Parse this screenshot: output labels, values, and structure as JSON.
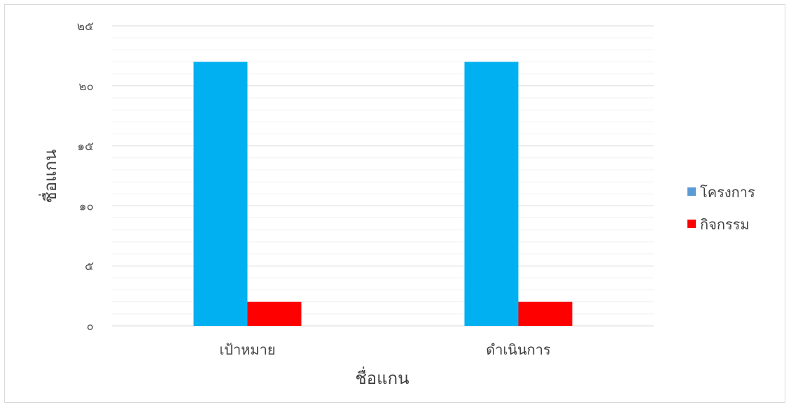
{
  "chart_data": {
    "type": "bar",
    "categories": [
      "เป้าหมาย",
      "ดำเนินการ"
    ],
    "series": [
      {
        "name": "โครงการ",
        "values": [
          22,
          22
        ],
        "color": "#00b0f0"
      },
      {
        "name": "กิจกรรม",
        "values": [
          2,
          2
        ],
        "color": "#ff0000"
      }
    ],
    "legend_swatch_colors": [
      "#5b9bd5",
      "#ff0000"
    ],
    "xlabel": "ชื่อแกน",
    "ylabel": "ชื่อแกน",
    "ylim": [
      0,
      25
    ],
    "yticks": [
      0,
      5,
      10,
      15,
      20,
      25
    ],
    "ytick_labels": [
      "๐",
      "๕",
      "๑๐",
      "๑๕",
      "๒๐",
      "๒๕"
    ],
    "grid": true,
    "minor_grid": true,
    "legend_position": "right"
  }
}
